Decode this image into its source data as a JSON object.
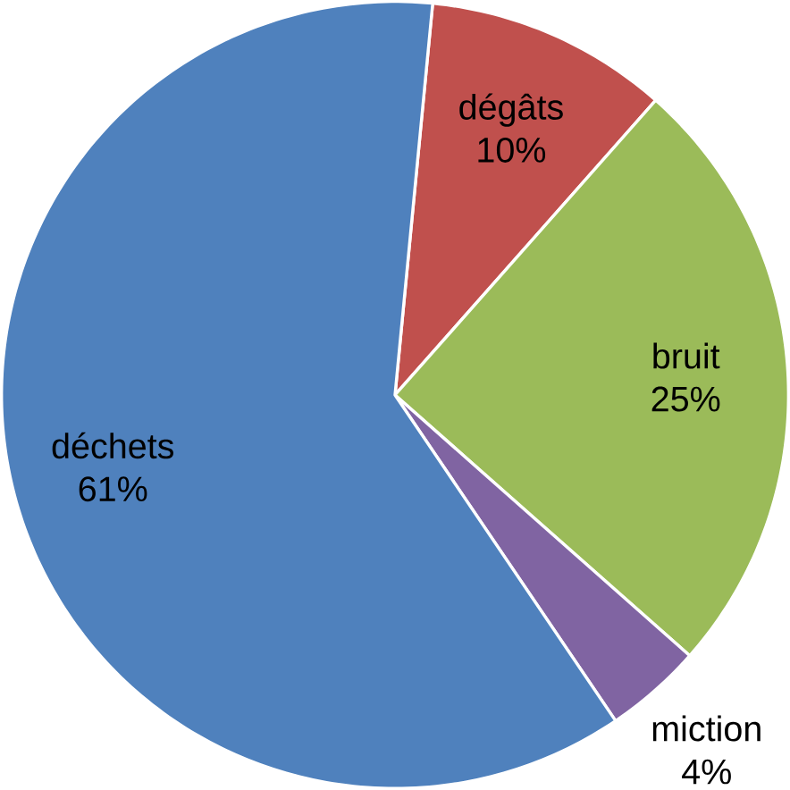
{
  "chart_data": {
    "type": "pie",
    "categories": [
      "dégâts",
      "bruit",
      "miction",
      "déchets"
    ],
    "values": [
      10,
      25,
      4,
      61
    ],
    "value_labels": [
      "10%",
      "25%",
      "4%",
      "61%"
    ],
    "colors": [
      "#c0504d",
      "#9bbb59",
      "#8064a2",
      "#4f81bd"
    ]
  }
}
